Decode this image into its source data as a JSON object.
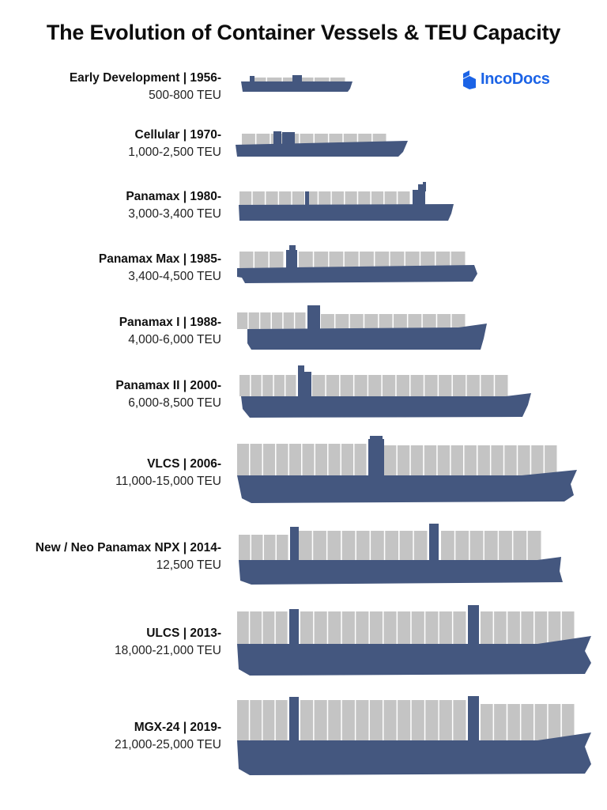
{
  "title": "The Evolution of Container Vessels & TEU Capacity",
  "brand": {
    "name": "IncoDocs",
    "color": "#1b63e6"
  },
  "colors": {
    "hull": "#44577f",
    "container": "#c4c4c4",
    "container_line": "#ffffff"
  },
  "vessels": [
    {
      "era": "Early Development | 1956-",
      "teu": "500-800 TEU"
    },
    {
      "era": "Cellular | 1970-",
      "teu": "1,000-2,500 TEU"
    },
    {
      "era": "Panamax | 1980-",
      "teu": "3,000-3,400 TEU"
    },
    {
      "era": "Panamax Max | 1985-",
      "teu": "3,400-4,500 TEU"
    },
    {
      "era": "Panamax I | 1988-",
      "teu": "4,000-6,000 TEU"
    },
    {
      "era": "Panamax II | 2000-",
      "teu": "6,000-8,500 TEU"
    },
    {
      "era": "VLCS | 2006-",
      "teu": "11,000-15,000 TEU"
    },
    {
      "era": "New / Neo Panamax NPX | 2014-",
      "teu": "12,500 TEU"
    },
    {
      "era": "ULCS | 2013-",
      "teu": "18,000-21,000 TEU"
    },
    {
      "era": "MGX-24 | 2019-",
      "teu": "21,000-25,000 TEU"
    }
  ]
}
